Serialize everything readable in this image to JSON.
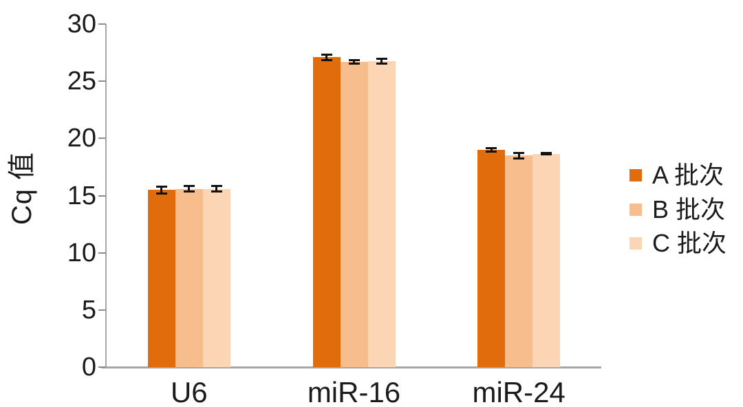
{
  "chart_data": {
    "type": "bar",
    "title": "",
    "ylabel": "Cq 值",
    "xlabel": "",
    "categories": [
      "U6",
      "miR-16",
      "miR-24"
    ],
    "series": [
      {
        "name": "A 批次",
        "color": "#E16C0C",
        "values": [
          15.5,
          27.1,
          19.0
        ],
        "errors": [
          0.3,
          0.25,
          0.15
        ]
      },
      {
        "name": "B 批次",
        "color": "#F8BD8D",
        "values": [
          15.6,
          26.7,
          18.5
        ],
        "errors": [
          0.25,
          0.15,
          0.25
        ]
      },
      {
        "name": "C 批次",
        "color": "#FBD5B4",
        "values": [
          15.6,
          26.75,
          18.65
        ],
        "errors": [
          0.25,
          0.2,
          0.05
        ]
      }
    ],
    "ylim": [
      0,
      30
    ],
    "yticks": [
      0,
      5,
      10,
      15,
      20,
      25,
      30
    ],
    "grid": false,
    "legend_position": "right",
    "error_bars": true,
    "axis_color": "#A6A6A6",
    "text_color": "#1B1B1B"
  }
}
